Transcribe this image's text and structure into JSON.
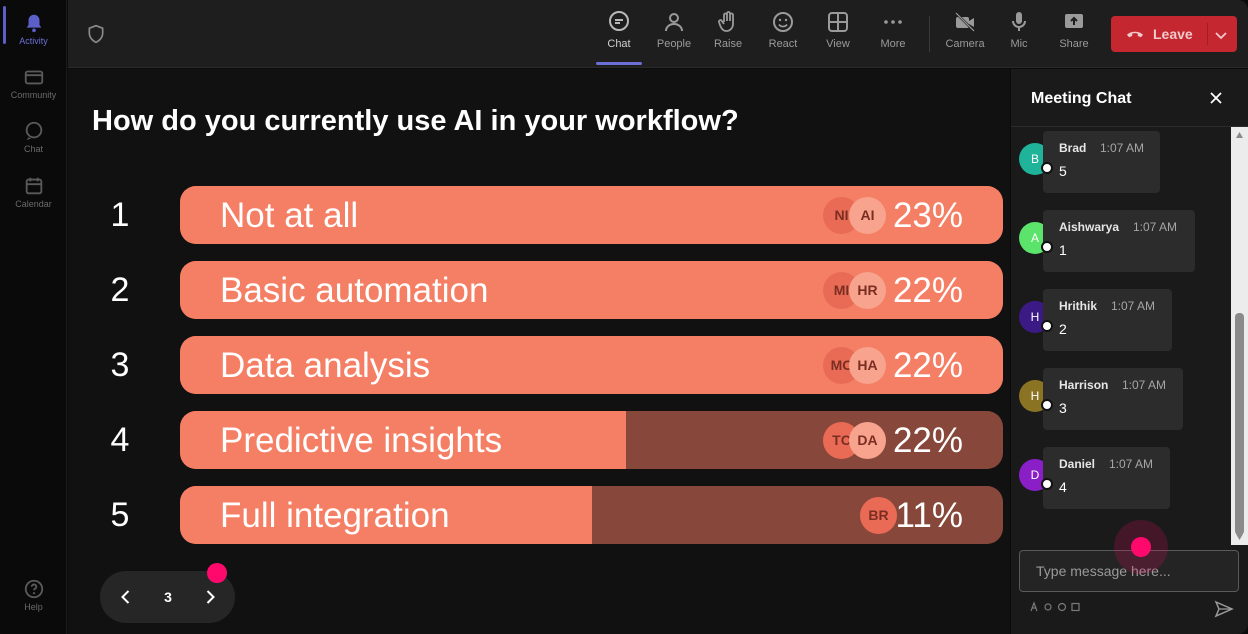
{
  "rail": {
    "items": [
      {
        "label": "Activity",
        "icon": "bell-icon"
      },
      {
        "label": "Community",
        "icon": "community-icon"
      },
      {
        "label": "Chat",
        "icon": "chat-icon"
      },
      {
        "label": "Calendar",
        "icon": "calendar-icon"
      }
    ],
    "help": "Help"
  },
  "toolbar": {
    "items": [
      {
        "label": "Chat",
        "icon": "chat-icon"
      },
      {
        "label": "People",
        "icon": "people-icon"
      },
      {
        "label": "Raise",
        "icon": "hand-icon"
      },
      {
        "label": "React",
        "icon": "smiley-icon"
      },
      {
        "label": "View",
        "icon": "grid-icon"
      },
      {
        "label": "More",
        "icon": "more-icon"
      },
      {
        "label": "Camera",
        "icon": "camera-off-icon"
      },
      {
        "label": "Mic",
        "icon": "mic-icon"
      },
      {
        "label": "Share",
        "icon": "share-icon"
      }
    ],
    "leave_label": "Leave",
    "leave_color": "#c4272f"
  },
  "poll": {
    "question": "How do you currently use AI in your workflow?",
    "fill_color": "#f47f64",
    "track_color": "#87473a",
    "options": [
      {
        "num": "1",
        "label": "Not at all",
        "pct": "23%",
        "fill": 1.0,
        "avatars": [
          "NI",
          "AI"
        ]
      },
      {
        "num": "2",
        "label": "Basic automation",
        "pct": "22%",
        "fill": 1.0,
        "avatars": [
          "MI",
          "HR"
        ]
      },
      {
        "num": "3",
        "label": "Data analysis",
        "pct": "22%",
        "fill": 1.0,
        "avatars": [
          "MC",
          "HA"
        ]
      },
      {
        "num": "4",
        "label": "Predictive insights",
        "pct": "22%",
        "fill": 0.542,
        "avatars": [
          "TC",
          "DA"
        ]
      },
      {
        "num": "5",
        "label": "Full integration",
        "pct": "11%",
        "fill": 0.501,
        "avatars": [
          "BR"
        ]
      }
    ],
    "page": "3"
  },
  "chat": {
    "title": "Meeting Chat",
    "messages": [
      {
        "initial": "B",
        "name": "Brad",
        "time": "1:07 AM",
        "text": "5",
        "color": "#1fb39a"
      },
      {
        "initial": "A",
        "name": "Aishwarya",
        "time": "1:07 AM",
        "text": "1",
        "color": "#5be36b"
      },
      {
        "initial": "H",
        "name": "Hrithik",
        "time": "1:07 AM",
        "text": "2",
        "color": "#3c1a86"
      },
      {
        "initial": "H",
        "name": "Harrison",
        "time": "1:07 AM",
        "text": "3",
        "color": "#8a7423"
      },
      {
        "initial": "D",
        "name": "Daniel",
        "time": "1:07 AM",
        "text": "4",
        "color": "#8a1fc8"
      }
    ],
    "placeholder": "Type message here..."
  }
}
